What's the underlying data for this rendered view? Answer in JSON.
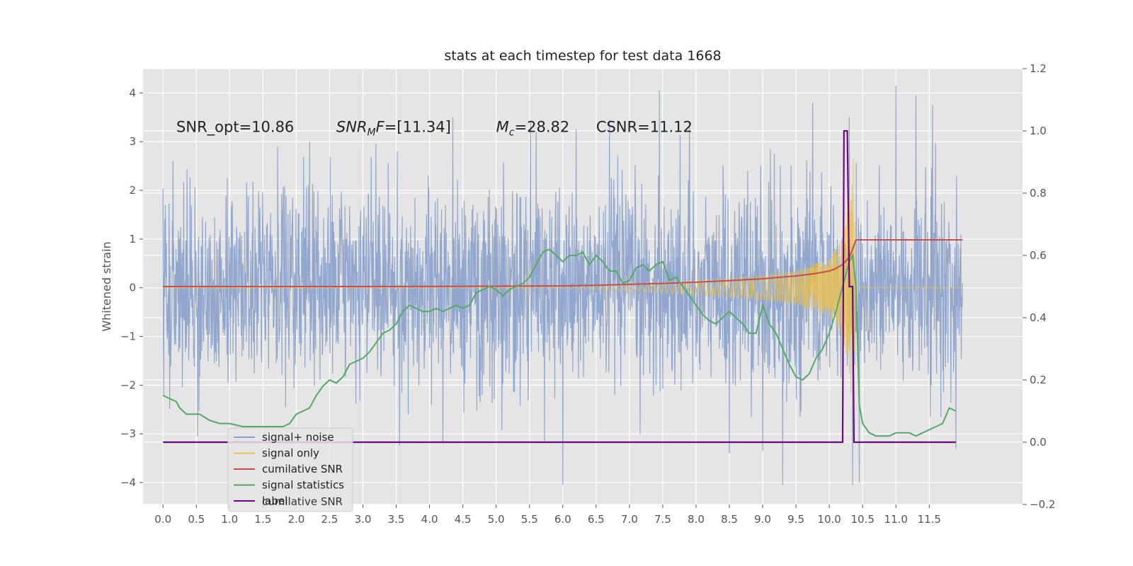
{
  "chart_data": {
    "type": "line",
    "title": "stats at each timestep for test data 1668",
    "ylabel": "Whitened strain",
    "y2label": "",
    "xlim": [
      -0.3,
      12.9
    ],
    "ylim": [
      -4.45,
      4.5
    ],
    "y2lim": [
      -0.2,
      1.2
    ],
    "x_ticks": [
      0.0,
      0.5,
      1.0,
      1.5,
      2.0,
      2.5,
      3.0,
      3.5,
      4.0,
      4.5,
      5.0,
      5.5,
      6.0,
      6.5,
      7.0,
      7.5,
      8.0,
      8.5,
      9.0,
      9.5,
      10.0,
      10.5,
      11.0,
      11.5
    ],
    "x_tick_labels": [
      "0.0",
      "0.5",
      "1.0",
      "1.5",
      "2.0",
      "2.5",
      "3.0",
      "3.5",
      "4.0",
      "4.5",
      "5.0",
      "5.5",
      "6.0",
      "6.5",
      "7.0",
      "7.5",
      "8.0",
      "8.5",
      "9.0",
      "9.5",
      "10.0",
      "10.5",
      "11.0",
      "11.5"
    ],
    "y_ticks": [
      -4,
      -3,
      -2,
      -1,
      0,
      1,
      2,
      3,
      4
    ],
    "y_tick_labels": [
      "−4",
      "−3",
      "−2",
      "−1",
      "0",
      "1",
      "2",
      "3",
      "4"
    ],
    "y2_ticks": [
      -0.2,
      0.0,
      0.2,
      0.4,
      0.6,
      0.8,
      1.0,
      1.2
    ],
    "y2_tick_labels": [
      "−0.2",
      "0.0",
      "0.2",
      "0.4",
      "0.6",
      "0.8",
      "1.0",
      "1.2"
    ],
    "grid": true,
    "legend_position": "lower-left",
    "annotations": [
      {
        "id": "snr_opt",
        "label": "SNR_opt=10.86",
        "x": 0.2
      },
      {
        "id": "snr_mf",
        "label_main": "SNR",
        "label_sub": "M",
        "label_rest": "F=[11.34]",
        "x": 2.6
      },
      {
        "id": "mc",
        "label_main": "M",
        "label_sub": "c",
        "label_rest": "=28.82",
        "x": 5.0
      },
      {
        "id": "csnr",
        "label": "CSNR=11.12",
        "x": 6.5
      }
    ],
    "annotation_y": 3.3,
    "series": [
      {
        "name": "signal+ noise",
        "color": "#8da3cc",
        "axis": "left",
        "x_range": [
          0.0,
          12.0
        ],
        "envelope_sigma": 1.0,
        "peak_values": [
          {
            "x": 0.15,
            "y": 2.6
          },
          {
            "x": 0.52,
            "y": -3.05
          },
          {
            "x": 1.72,
            "y": 2.9
          },
          {
            "x": 2.2,
            "y": 3.0
          },
          {
            "x": 3.55,
            "y": -3.25
          },
          {
            "x": 4.2,
            "y": -3.2
          },
          {
            "x": 4.35,
            "y": 3.5
          },
          {
            "x": 5.6,
            "y": 3.2
          },
          {
            "x": 6.0,
            "y": -4.05
          },
          {
            "x": 6.2,
            "y": 3.25
          },
          {
            "x": 6.7,
            "y": 3.45
          },
          {
            "x": 7.45,
            "y": 4.05
          },
          {
            "x": 7.9,
            "y": 3.4
          },
          {
            "x": 8.5,
            "y": -3.4
          },
          {
            "x": 9.0,
            "y": -3.35
          },
          {
            "x": 9.3,
            "y": -4.05
          },
          {
            "x": 9.75,
            "y": 3.8
          },
          {
            "x": 10.3,
            "y": 3.5
          },
          {
            "x": 10.35,
            "y": -4.05
          },
          {
            "x": 10.45,
            "y": -4.0
          },
          {
            "x": 11.0,
            "y": 4.15
          },
          {
            "x": 11.3,
            "y": 3.95
          },
          {
            "x": 11.55,
            "y": 3.75
          },
          {
            "x": 11.9,
            "y": -3.3
          }
        ]
      },
      {
        "name": "signal only",
        "color": "#e8c156",
        "axis": "left",
        "description_points": [
          {
            "x": 0.0,
            "amp": 0.0
          },
          {
            "x": 6.0,
            "amp": 0.02
          },
          {
            "x": 7.0,
            "amp": 0.08
          },
          {
            "x": 8.0,
            "amp": 0.15
          },
          {
            "x": 9.0,
            "amp": 0.25
          },
          {
            "x": 9.5,
            "amp": 0.35
          },
          {
            "x": 10.0,
            "amp": 0.6
          },
          {
            "x": 10.2,
            "amp": 1.0
          },
          {
            "x": 10.3,
            "amp": 1.8
          },
          {
            "x": 10.36,
            "amp": 2.7
          },
          {
            "x": 10.4,
            "amp": 0.0
          },
          {
            "x": 12.0,
            "amp": 0.0
          }
        ]
      },
      {
        "name": "cumilative SNR",
        "color": "#c44e52",
        "axis": "right",
        "x": [
          0.0,
          3.0,
          5.0,
          6.0,
          6.5,
          7.0,
          7.5,
          8.0,
          8.5,
          9.0,
          9.5,
          9.8,
          10.0,
          10.1,
          10.2,
          10.3,
          10.35,
          10.4,
          12.0
        ],
        "y": [
          0.5,
          0.5,
          0.501,
          0.502,
          0.504,
          0.507,
          0.51,
          0.514,
          0.519,
          0.525,
          0.534,
          0.542,
          0.55,
          0.558,
          0.571,
          0.594,
          0.62,
          0.65,
          0.65
        ]
      },
      {
        "name": "signal statistics",
        "color": "#55a868",
        "axis": "right",
        "x": [
          0.0,
          0.1,
          0.2,
          0.25,
          0.35,
          0.45,
          0.55,
          0.7,
          0.85,
          1.0,
          1.2,
          1.4,
          1.6,
          1.8,
          1.9,
          2.0,
          2.1,
          2.2,
          2.3,
          2.4,
          2.5,
          2.6,
          2.7,
          2.8,
          2.9,
          3.0,
          3.1,
          3.2,
          3.3,
          3.4,
          3.5,
          3.6,
          3.7,
          3.8,
          3.9,
          4.0,
          4.1,
          4.2,
          4.3,
          4.4,
          4.5,
          4.6,
          4.7,
          4.8,
          4.9,
          5.0,
          5.1,
          5.2,
          5.3,
          5.4,
          5.5,
          5.6,
          5.7,
          5.8,
          5.9,
          6.0,
          6.1,
          6.2,
          6.3,
          6.4,
          6.5,
          6.6,
          6.7,
          6.8,
          6.9,
          7.0,
          7.1,
          7.2,
          7.3,
          7.4,
          7.5,
          7.6,
          7.7,
          7.8,
          7.9,
          8.0,
          8.1,
          8.2,
          8.3,
          8.4,
          8.5,
          8.6,
          8.7,
          8.8,
          8.9,
          9.0,
          9.1,
          9.2,
          9.3,
          9.4,
          9.5,
          9.6,
          9.7,
          9.8,
          9.9,
          10.0,
          10.1,
          10.2,
          10.3,
          10.35,
          10.4,
          10.45,
          10.5,
          10.6,
          10.7,
          10.8,
          10.9,
          11.0,
          11.1,
          11.2,
          11.3,
          11.4,
          11.5,
          11.6,
          11.7,
          11.8,
          11.9
        ],
        "y": [
          0.15,
          0.14,
          0.13,
          0.11,
          0.09,
          0.09,
          0.09,
          0.07,
          0.06,
          0.06,
          0.05,
          0.05,
          0.05,
          0.05,
          0.06,
          0.09,
          0.1,
          0.11,
          0.15,
          0.18,
          0.2,
          0.19,
          0.21,
          0.25,
          0.26,
          0.27,
          0.29,
          0.32,
          0.35,
          0.36,
          0.38,
          0.42,
          0.44,
          0.43,
          0.42,
          0.42,
          0.43,
          0.42,
          0.43,
          0.44,
          0.43,
          0.44,
          0.48,
          0.49,
          0.5,
          0.49,
          0.47,
          0.49,
          0.5,
          0.51,
          0.53,
          0.57,
          0.61,
          0.62,
          0.6,
          0.58,
          0.6,
          0.6,
          0.61,
          0.57,
          0.6,
          0.58,
          0.55,
          0.55,
          0.51,
          0.52,
          0.56,
          0.57,
          0.55,
          0.57,
          0.58,
          0.52,
          0.53,
          0.5,
          0.47,
          0.44,
          0.41,
          0.39,
          0.38,
          0.4,
          0.42,
          0.4,
          0.38,
          0.35,
          0.35,
          0.44,
          0.38,
          0.35,
          0.3,
          0.25,
          0.21,
          0.2,
          0.22,
          0.27,
          0.3,
          0.35,
          0.42,
          0.5,
          0.58,
          0.6,
          0.5,
          0.12,
          0.06,
          0.03,
          0.02,
          0.02,
          0.02,
          0.03,
          0.03,
          0.03,
          0.02,
          0.03,
          0.04,
          0.05,
          0.06,
          0.11,
          0.1
        ]
      },
      {
        "name": "label",
        "color": "#6a0a82",
        "axis": "right",
        "x": [
          0.0,
          10.2,
          10.22,
          10.27,
          10.3,
          10.35,
          10.37,
          11.9
        ],
        "y": [
          0.0,
          0.0,
          1.0,
          1.0,
          0.5,
          0.5,
          0.0,
          0.0
        ]
      }
    ],
    "legend_entries": [
      {
        "name": "signal+ noise",
        "color": "#8da3cc"
      },
      {
        "name": "signal only",
        "color": "#e8c156"
      },
      {
        "name": "cumilative SNR",
        "color": "#c44e52"
      },
      {
        "name": "signal statistics",
        "color": "#55a868"
      },
      {
        "name": "label",
        "color": "#6a0a82"
      }
    ],
    "legend_ghost_text": "cumilative SNR",
    "colors": {
      "axes_bg": "#e5e5e5",
      "grid": "#ffffff",
      "tick_text": "#555555",
      "title_text": "#222222"
    }
  }
}
